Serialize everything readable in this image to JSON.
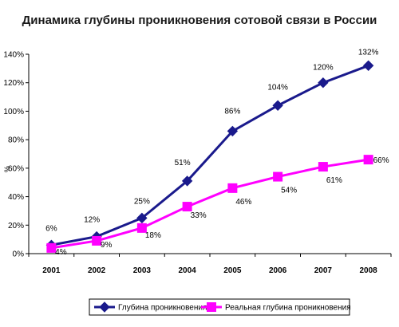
{
  "chart_data": {
    "type": "line",
    "title": "Динамика глубины проникновения сотовой связи в России",
    "xlabel": "",
    "ylabel": "%",
    "categories": [
      "2001",
      "2002",
      "2003",
      "2004",
      "2005",
      "2006",
      "2007",
      "2008"
    ],
    "ylim": [
      0,
      140
    ],
    "ytick_step": 20,
    "yticks": [
      "0%",
      "20%",
      "40%",
      "60%",
      "80%",
      "100%",
      "120%",
      "140%"
    ],
    "grid": false,
    "legend_position": "bottom",
    "series": [
      {
        "name": "Глубина проникновения",
        "values": [
          6,
          12,
          25,
          51,
          86,
          104,
          120,
          132
        ],
        "labels": [
          "6%",
          "12%",
          "25%",
          "51%",
          "86%",
          "104%",
          "120%",
          "132%"
        ],
        "color": "#1a1a8c",
        "marker": "diamond"
      },
      {
        "name": "Реальная глубина проникновения",
        "values": [
          4,
          9,
          18,
          33,
          46,
          54,
          61,
          66
        ],
        "labels": [
          "4%",
          "9%",
          "18%",
          "33%",
          "46%",
          "54%",
          "61%",
          "66%"
        ],
        "color": "#ff00ff",
        "marker": "square"
      }
    ]
  }
}
